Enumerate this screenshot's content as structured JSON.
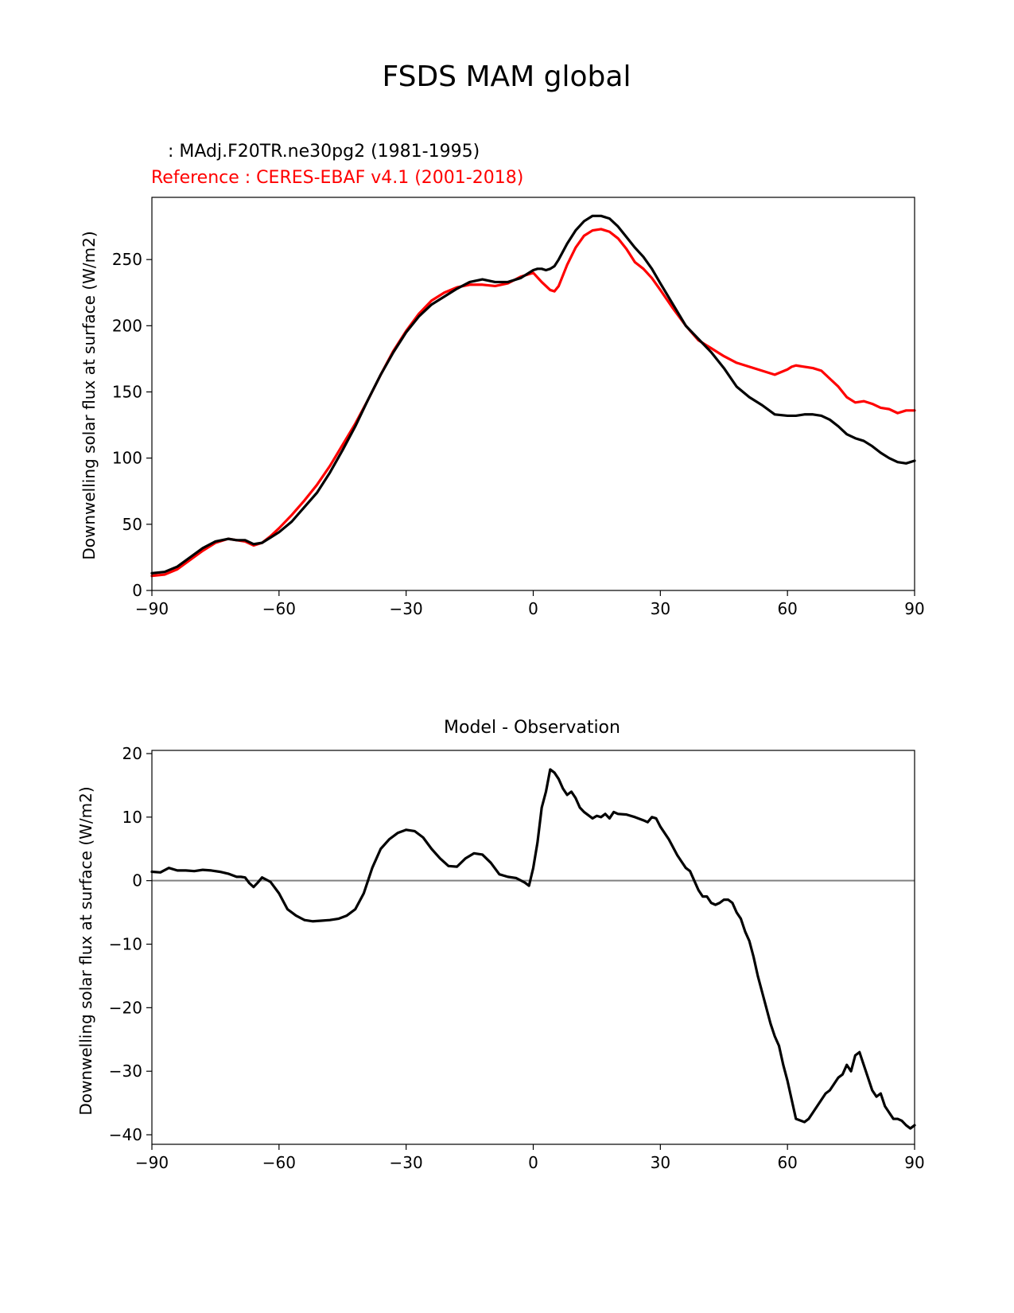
{
  "suptitle": "FSDS MAM global",
  "colors": {
    "model": "#000000",
    "reference": "#ff0000",
    "zero_line": "#808080"
  },
  "chart_data": [
    {
      "type": "line",
      "title_lines": [
        {
          "text": "   : MAdj.F20TR.ne30pg2 (1981-1995)",
          "color": "#000000"
        },
        {
          "text": "Reference : CERES-EBAF v4.1 (2001-2018)",
          "color": "#ff0000"
        }
      ],
      "ylabel": "Downwelling solar flux at surface (W/m2)",
      "xlim": [
        -90,
        90
      ],
      "ylim": [
        0,
        297
      ],
      "xticks": [
        -90,
        -60,
        -30,
        0,
        30,
        60,
        90
      ],
      "xtick_labels": [
        "−90",
        "−60",
        "−30",
        "0",
        "30",
        "60",
        "90"
      ],
      "yticks": [
        0,
        50,
        100,
        150,
        200,
        250
      ],
      "ytick_labels": [
        "0",
        "50",
        "100",
        "150",
        "200",
        "250"
      ],
      "grid": false,
      "series": [
        {
          "name": "Reference : CERES-EBAF v4.1 (2001-2018)",
          "color": "#ff0000",
          "x": [
            -90,
            -87,
            -84,
            -81,
            -78,
            -75,
            -72,
            -70,
            -68,
            -66,
            -64,
            -62,
            -60,
            -57,
            -54,
            -51,
            -48,
            -45,
            -42,
            -39,
            -36,
            -33,
            -30,
            -27,
            -24,
            -21,
            -18,
            -15,
            -12,
            -9,
            -6,
            -3,
            0,
            2,
            4,
            5,
            6,
            8,
            10,
            12,
            14,
            16,
            18,
            20,
            22,
            24,
            26,
            28,
            30,
            33,
            36,
            39,
            42,
            45,
            48,
            51,
            54,
            57,
            60,
            61,
            62,
            64,
            66,
            68,
            70,
            72,
            74,
            76,
            78,
            80,
            82,
            84,
            86,
            88,
            90
          ],
          "y": [
            11,
            12,
            16,
            23,
            30,
            36,
            39,
            38,
            37,
            34,
            36,
            41,
            47,
            57,
            68,
            80,
            94,
            110,
            126,
            144,
            163,
            181,
            196,
            209,
            219,
            225,
            229,
            231,
            231,
            230,
            232,
            237,
            240,
            233,
            227,
            226,
            230,
            246,
            259,
            268,
            272,
            273,
            271,
            266,
            258,
            248,
            243,
            236,
            227,
            213,
            200,
            189,
            183,
            177,
            172,
            169,
            166,
            163,
            167,
            169,
            170,
            169,
            168,
            166,
            160,
            154,
            146,
            142,
            143,
            141,
            138,
            137,
            134,
            136,
            136
          ]
        },
        {
          "name": "MAdj.F20TR.ne30pg2 (1981-1995)",
          "color": "#000000",
          "x": [
            -90,
            -87,
            -84,
            -81,
            -78,
            -75,
            -72,
            -70,
            -68,
            -66,
            -64,
            -62,
            -60,
            -57,
            -54,
            -51,
            -48,
            -45,
            -42,
            -39,
            -36,
            -33,
            -30,
            -27,
            -24,
            -21,
            -18,
            -15,
            -12,
            -9,
            -6,
            -3,
            0,
            1,
            2,
            3,
            4,
            5,
            6,
            8,
            10,
            12,
            14,
            16,
            18,
            20,
            22,
            24,
            26,
            28,
            30,
            33,
            36,
            39,
            42,
            45,
            48,
            51,
            54,
            57,
            60,
            62,
            64,
            66,
            68,
            70,
            72,
            74,
            76,
            78,
            80,
            82,
            84,
            86,
            88,
            90
          ],
          "y": [
            13,
            14,
            18,
            25,
            32,
            37,
            39,
            38,
            38,
            35,
            36,
            40,
            44,
            52,
            63,
            74,
            89,
            106,
            124,
            144,
            163,
            180,
            195,
            207,
            216,
            222,
            228,
            233,
            235,
            233,
            233,
            236,
            242,
            243,
            243,
            242,
            243,
            245,
            250,
            262,
            272,
            279,
            283,
            283,
            281,
            275,
            267,
            259,
            252,
            243,
            232,
            216,
            200,
            190,
            180,
            168,
            154,
            146,
            140,
            133,
            132,
            132,
            133,
            133,
            132,
            129,
            124,
            118,
            115,
            113,
            109,
            104,
            100,
            97,
            96,
            98
          ]
        }
      ]
    },
    {
      "type": "line",
      "title": "Model - Observation",
      "ylabel": "Downwelling solar flux at surface (W/m2)",
      "xlim": [
        -90,
        90
      ],
      "ylim": [
        -41.5,
        20.5
      ],
      "xticks": [
        -90,
        -60,
        -30,
        0,
        30,
        60,
        90
      ],
      "xtick_labels": [
        "−90",
        "−60",
        "−30",
        "0",
        "30",
        "60",
        "90"
      ],
      "yticks": [
        -40,
        -30,
        -20,
        -10,
        0,
        10,
        20
      ],
      "ytick_labels": [
        "−40",
        "−30",
        "−20",
        "−10",
        "0",
        "10",
        "20"
      ],
      "zero_line": 0,
      "grid": false,
      "series": [
        {
          "color": "#000000",
          "x": [
            -90,
            -88,
            -86,
            -84,
            -82,
            -80,
            -78,
            -76,
            -74,
            -72,
            -70,
            -69,
            -68,
            -67,
            -66,
            -65,
            -64,
            -62,
            -60,
            -58,
            -56,
            -54,
            -52,
            -50,
            -48,
            -46,
            -44,
            -42,
            -40,
            -38,
            -36,
            -34,
            -32,
            -30,
            -28,
            -26,
            -24,
            -22,
            -20,
            -18,
            -16,
            -14,
            -12,
            -10,
            -8,
            -6,
            -4,
            -2,
            -1,
            0,
            1,
            2,
            3,
            4,
            5,
            6,
            7,
            8,
            9,
            10,
            11,
            12,
            14,
            15,
            16,
            17,
            18,
            19,
            20,
            22,
            24,
            26,
            27,
            28,
            29,
            30,
            32,
            34,
            35,
            36,
            37,
            38,
            39,
            40,
            41,
            42,
            43,
            44,
            45,
            46,
            47,
            48,
            49,
            50,
            51,
            52,
            53,
            54,
            55,
            56,
            57,
            58,
            59,
            60,
            62,
            64,
            65,
            66,
            67,
            68,
            69,
            70,
            71,
            72,
            73,
            74,
            75,
            76,
            77,
            78,
            79,
            80,
            81,
            82,
            83,
            84,
            85,
            86,
            87,
            88,
            89,
            90
          ],
          "y": [
            1.4,
            1.3,
            2.0,
            1.6,
            1.6,
            1.5,
            1.7,
            1.6,
            1.4,
            1.1,
            0.6,
            0.6,
            0.5,
            -0.4,
            -1.0,
            -0.3,
            0.5,
            -0.2,
            -2.0,
            -4.5,
            -5.5,
            -6.2,
            -6.4,
            -6.3,
            -6.2,
            -6.0,
            -5.5,
            -4.5,
            -2.0,
            2.0,
            5.0,
            6.5,
            7.5,
            8.0,
            7.8,
            6.8,
            5.0,
            3.5,
            2.3,
            2.2,
            3.5,
            4.3,
            4.1,
            2.8,
            1.0,
            0.6,
            0.4,
            -0.3,
            -0.8,
            2.0,
            6.0,
            11.5,
            14.0,
            17.5,
            17.0,
            16.0,
            14.5,
            13.5,
            14.0,
            13.0,
            11.5,
            10.8,
            9.8,
            10.2,
            10.0,
            10.5,
            9.8,
            10.8,
            10.5,
            10.4,
            10.0,
            9.5,
            9.2,
            10.0,
            9.8,
            8.5,
            6.5,
            4.0,
            3.0,
            2.0,
            1.5,
            0.0,
            -1.5,
            -2.5,
            -2.5,
            -3.5,
            -3.8,
            -3.5,
            -3.0,
            -3.0,
            -3.5,
            -5.0,
            -6.0,
            -8.0,
            -9.5,
            -12.0,
            -15.0,
            -17.5,
            -20.0,
            -22.5,
            -24.5,
            -26.0,
            -29.0,
            -31.5,
            -37.5,
            -38.0,
            -37.5,
            -36.5,
            -35.5,
            -34.5,
            -33.5,
            -33.0,
            -32.0,
            -31.0,
            -30.5,
            -29.0,
            -30.0,
            -27.5,
            -27.0,
            -29.0,
            -31.0,
            -33.0,
            -34.0,
            -33.5,
            -35.5,
            -36.5,
            -37.5,
            -37.5,
            -37.8,
            -38.5,
            -39.0,
            -38.5
          ]
        }
      ]
    }
  ]
}
